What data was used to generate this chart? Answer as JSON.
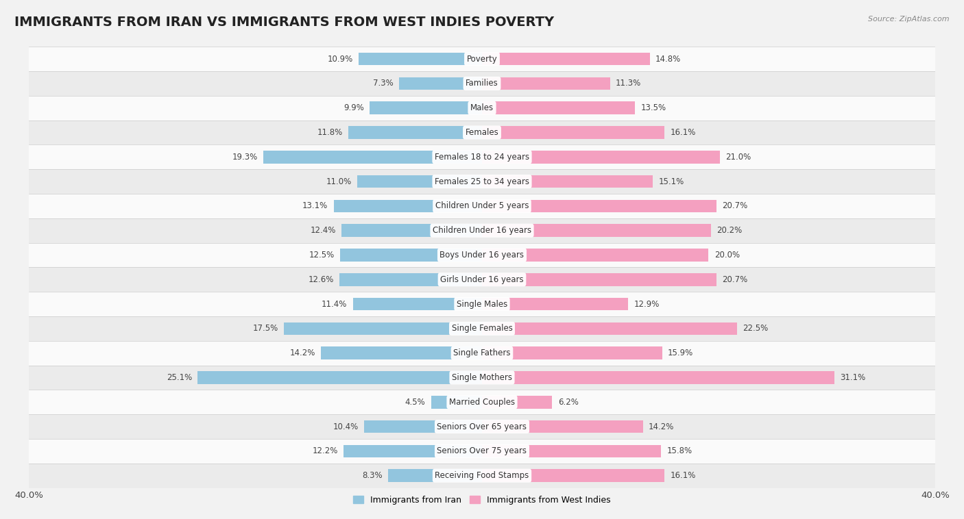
{
  "title": "IMMIGRANTS FROM IRAN VS IMMIGRANTS FROM WEST INDIES POVERTY",
  "source": "Source: ZipAtlas.com",
  "categories": [
    "Poverty",
    "Families",
    "Males",
    "Females",
    "Females 18 to 24 years",
    "Females 25 to 34 years",
    "Children Under 5 years",
    "Children Under 16 years",
    "Boys Under 16 years",
    "Girls Under 16 years",
    "Single Males",
    "Single Females",
    "Single Fathers",
    "Single Mothers",
    "Married Couples",
    "Seniors Over 65 years",
    "Seniors Over 75 years",
    "Receiving Food Stamps"
  ],
  "iran_values": [
    10.9,
    7.3,
    9.9,
    11.8,
    19.3,
    11.0,
    13.1,
    12.4,
    12.5,
    12.6,
    11.4,
    17.5,
    14.2,
    25.1,
    4.5,
    10.4,
    12.2,
    8.3
  ],
  "west_indies_values": [
    14.8,
    11.3,
    13.5,
    16.1,
    21.0,
    15.1,
    20.7,
    20.2,
    20.0,
    20.7,
    12.9,
    22.5,
    15.9,
    31.1,
    6.2,
    14.2,
    15.8,
    16.1
  ],
  "iran_color": "#92c5de",
  "west_indies_color": "#f4a0c0",
  "bg_color": "#f2f2f2",
  "row_colors": [
    "#fafafa",
    "#ebebeb"
  ],
  "axis_limit": 40.0,
  "bar_height": 0.52,
  "label_fontsize": 8.5,
  "value_fontsize": 8.5,
  "title_fontsize": 14,
  "source_fontsize": 8,
  "legend_fontsize": 9,
  "legend_label_iran": "Immigrants from Iran",
  "legend_label_west_indies": "Immigrants from West Indies"
}
